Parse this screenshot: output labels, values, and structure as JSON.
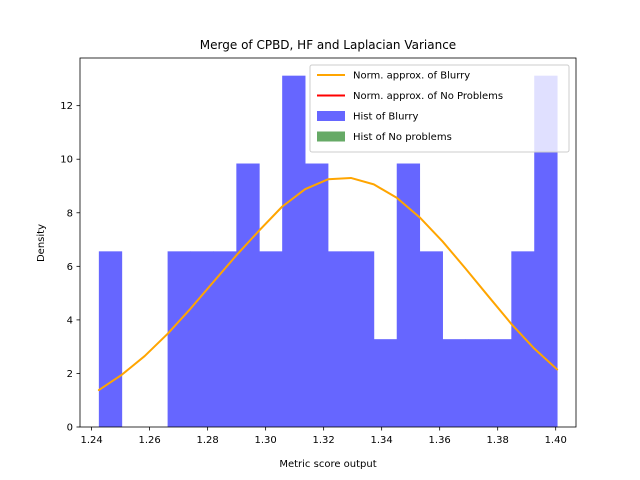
{
  "chart_data": {
    "type": "bar",
    "title": "Merge of CPBD, HF and Laplacian Variance",
    "xlabel": "Metric score output",
    "ylabel": "Density",
    "xlim": [
      1.236,
      1.407
    ],
    "ylim": [
      0,
      13.78
    ],
    "x_ticks": [
      1.24,
      1.26,
      1.28,
      1.3,
      1.32,
      1.34,
      1.36,
      1.38,
      1.4
    ],
    "x_tick_labels": [
      "1.24",
      "1.26",
      "1.28",
      "1.30",
      "1.32",
      "1.34",
      "1.36",
      "1.38",
      "1.40"
    ],
    "y_ticks": [
      0,
      2,
      4,
      6,
      8,
      10,
      12
    ],
    "y_tick_labels": [
      "0",
      "2",
      "4",
      "6",
      "8",
      "10",
      "12"
    ],
    "grid": false,
    "legend_position": "top-right",
    "histograms": [
      {
        "name": "Hist of Blurry",
        "color": "#6666ff",
        "bin_edges": [
          1.2425,
          1.2504,
          1.2583,
          1.2662,
          1.2741,
          1.282,
          1.2899,
          1.2978,
          1.3057,
          1.3136,
          1.3215,
          1.3294,
          1.3373,
          1.3452,
          1.3531,
          1.361,
          1.3689,
          1.3768,
          1.3847,
          1.3926,
          1.4005
        ],
        "values": [
          6.56,
          0,
          0,
          6.56,
          6.56,
          6.56,
          9.84,
          6.56,
          13.12,
          9.84,
          6.56,
          6.56,
          3.28,
          9.84,
          6.56,
          3.28,
          3.28,
          3.28,
          6.56,
          13.12
        ]
      },
      {
        "name": "Hist of No problems",
        "color": "#66aa66",
        "bin_edges": [],
        "values": []
      }
    ],
    "series": [
      {
        "name": "Norm. approx. of Blurry",
        "color": "#ffa500",
        "x": [
          1.2425,
          1.2504,
          1.2583,
          1.2662,
          1.2741,
          1.282,
          1.2899,
          1.2978,
          1.3057,
          1.3136,
          1.3215,
          1.3294,
          1.3373,
          1.3452,
          1.3531,
          1.361,
          1.3689,
          1.3768,
          1.3847,
          1.3926,
          1.4005
        ],
        "y": [
          1.38,
          1.95,
          2.65,
          3.48,
          4.42,
          5.42,
          6.41,
          7.34,
          8.23,
          8.88,
          9.25,
          9.3,
          9.06,
          8.56,
          7.83,
          6.93,
          5.92,
          4.88,
          3.85,
          2.93,
          2.15
        ]
      },
      {
        "name": "Norm. approx. of No Problems",
        "color": "#ff0000",
        "x": [],
        "y": []
      }
    ],
    "legend": [
      {
        "label": "Norm. approx. of Blurry",
        "kind": "line",
        "color": "#ffa500"
      },
      {
        "label": "Norm. approx. of No Problems",
        "kind": "line",
        "color": "#ff0000"
      },
      {
        "label": "Hist of Blurry",
        "kind": "patch",
        "color": "#6666ff"
      },
      {
        "label": "Hist of No problems",
        "kind": "patch",
        "color": "#66aa66"
      }
    ]
  }
}
